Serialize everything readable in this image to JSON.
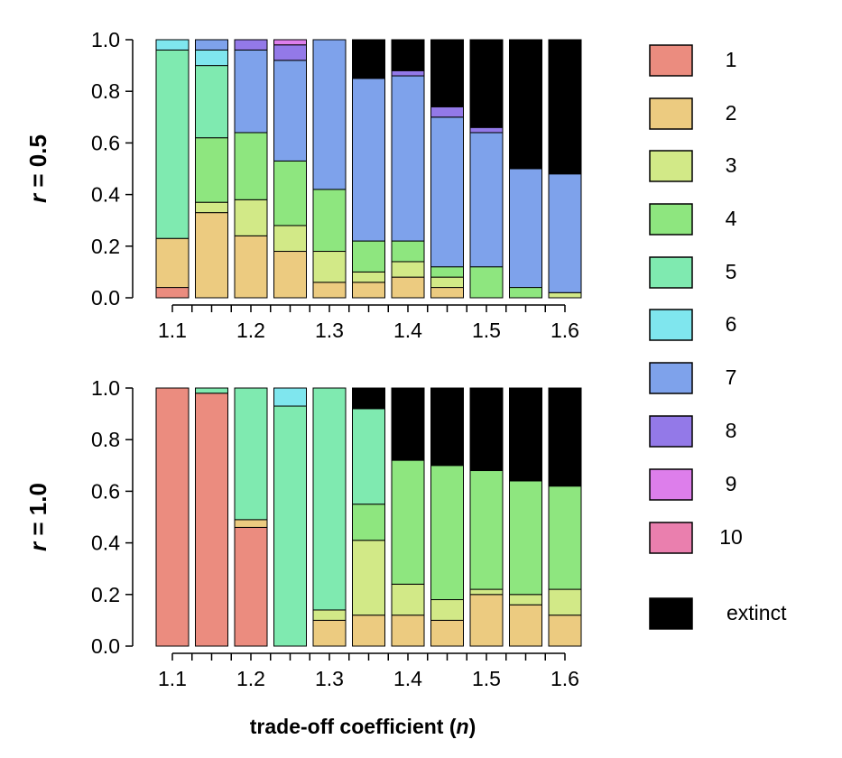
{
  "chart_data": {
    "type": "bar",
    "stacked": true,
    "xlabel_prefix": "trade-off coefficient (",
    "xlabel_var": "n",
    "xlabel_suffix": ")",
    "categories": [
      "1.1",
      "1.125",
      "1.15",
      "1.175",
      "1.2",
      "1.225",
      "1.25",
      "1.275",
      "1.3",
      "1.325",
      "1.35",
      "1.375",
      "1.4",
      "1.425",
      "1.45",
      "1.475",
      "1.5",
      "1.525",
      "1.55",
      "1.575",
      "1.6"
    ],
    "xtick_labels": [
      "1.1",
      "1.2",
      "1.3",
      "1.4",
      "1.5",
      "1.6"
    ],
    "ylim": [
      0,
      1
    ],
    "yticks": [
      "0.0",
      "0.2",
      "0.4",
      "0.6",
      "0.8",
      "1.0"
    ],
    "grid": false,
    "legend_position": "right",
    "legend": [
      {
        "key": "1",
        "label": "1",
        "color": "#EB8C7F"
      },
      {
        "key": "2",
        "label": "2",
        "color": "#ECCB80"
      },
      {
        "key": "3",
        "label": "3",
        "color": "#D2E987"
      },
      {
        "key": "4",
        "label": "4",
        "color": "#8EE67F"
      },
      {
        "key": "5",
        "label": "5",
        "color": "#7FEAB0"
      },
      {
        "key": "6",
        "label": "6",
        "color": "#7FE6EE"
      },
      {
        "key": "7",
        "label": "7",
        "color": "#7EA2EB"
      },
      {
        "key": "8",
        "label": "8",
        "color": "#9379E8"
      },
      {
        "key": "9",
        "label": "9",
        "color": "#DD7EEB"
      },
      {
        "key": "10",
        "label": "10",
        "color": "#EA7FAE"
      },
      {
        "key": "extinct",
        "label": "extinct",
        "color": "#000000"
      }
    ],
    "panels": [
      {
        "ylabel_var": "r",
        "ylabel_rest": " = 0.5",
        "bars": [
          {
            "x": "1.1",
            "segments": {
              "1": 0.04,
              "2": 0.19,
              "5": 0.73,
              "6": 0.04
            }
          },
          {
            "x": "1.15",
            "segments": {
              "2": 0.33,
              "3": 0.04,
              "4": 0.25,
              "5": 0.28,
              "6": 0.06,
              "7": 0.04
            }
          },
          {
            "x": "1.2",
            "segments": {
              "2": 0.24,
              "3": 0.14,
              "4": 0.26,
              "7": 0.32,
              "8": 0.04
            }
          },
          {
            "x": "1.25",
            "segments": {
              "2": 0.18,
              "3": 0.1,
              "4": 0.25,
              "7": 0.39,
              "8": 0.06,
              "9": 0.02
            }
          },
          {
            "x": "1.3",
            "segments": {
              "2": 0.06,
              "3": 0.12,
              "4": 0.24,
              "7": 0.58
            }
          },
          {
            "x": "1.35",
            "segments": {
              "2": 0.06,
              "3": 0.04,
              "4": 0.12,
              "7": 0.63,
              "extinct": 0.15
            }
          },
          {
            "x": "1.4",
            "segments": {
              "2": 0.08,
              "3": 0.06,
              "4": 0.08,
              "7": 0.64,
              "8": 0.02,
              "extinct": 0.12
            }
          },
          {
            "x": "1.45",
            "segments": {
              "2": 0.04,
              "3": 0.04,
              "4": 0.04,
              "7": 0.58,
              "8": 0.04,
              "extinct": 0.26
            }
          },
          {
            "x": "1.5",
            "segments": {
              "4": 0.12,
              "7": 0.52,
              "8": 0.02,
              "extinct": 0.34
            }
          },
          {
            "x": "1.55",
            "segments": {
              "4": 0.04,
              "7": 0.46,
              "extinct": 0.5
            }
          },
          {
            "x": "1.6",
            "segments": {
              "3": 0.02,
              "7": 0.46,
              "extinct": 0.52
            }
          }
        ]
      },
      {
        "ylabel_var": "r",
        "ylabel_rest": " = 1.0",
        "bars": [
          {
            "x": "1.1",
            "segments": {
              "1": 1.0
            }
          },
          {
            "x": "1.15",
            "segments": {
              "1": 0.98,
              "5": 0.02
            }
          },
          {
            "x": "1.2",
            "segments": {
              "1": 0.46,
              "2": 0.03,
              "5": 0.51
            }
          },
          {
            "x": "1.25",
            "segments": {
              "5": 0.93,
              "6": 0.07
            }
          },
          {
            "x": "1.3",
            "segments": {
              "2": 0.1,
              "3": 0.04,
              "5": 0.86
            }
          },
          {
            "x": "1.35",
            "segments": {
              "2": 0.12,
              "3": 0.29,
              "4": 0.14,
              "5": 0.37,
              "extinct": 0.08
            }
          },
          {
            "x": "1.4",
            "segments": {
              "2": 0.12,
              "3": 0.12,
              "4": 0.48,
              "extinct": 0.28
            }
          },
          {
            "x": "1.45",
            "segments": {
              "2": 0.1,
              "3": 0.08,
              "4": 0.52,
              "extinct": 0.3
            }
          },
          {
            "x": "1.5",
            "segments": {
              "2": 0.2,
              "3": 0.02,
              "4": 0.46,
              "extinct": 0.32
            }
          },
          {
            "x": "1.55",
            "segments": {
              "2": 0.16,
              "3": 0.04,
              "4": 0.44,
              "extinct": 0.36
            }
          },
          {
            "x": "1.6",
            "segments": {
              "2": 0.12,
              "3": 0.1,
              "4": 0.4,
              "extinct": 0.38
            }
          }
        ]
      }
    ]
  }
}
